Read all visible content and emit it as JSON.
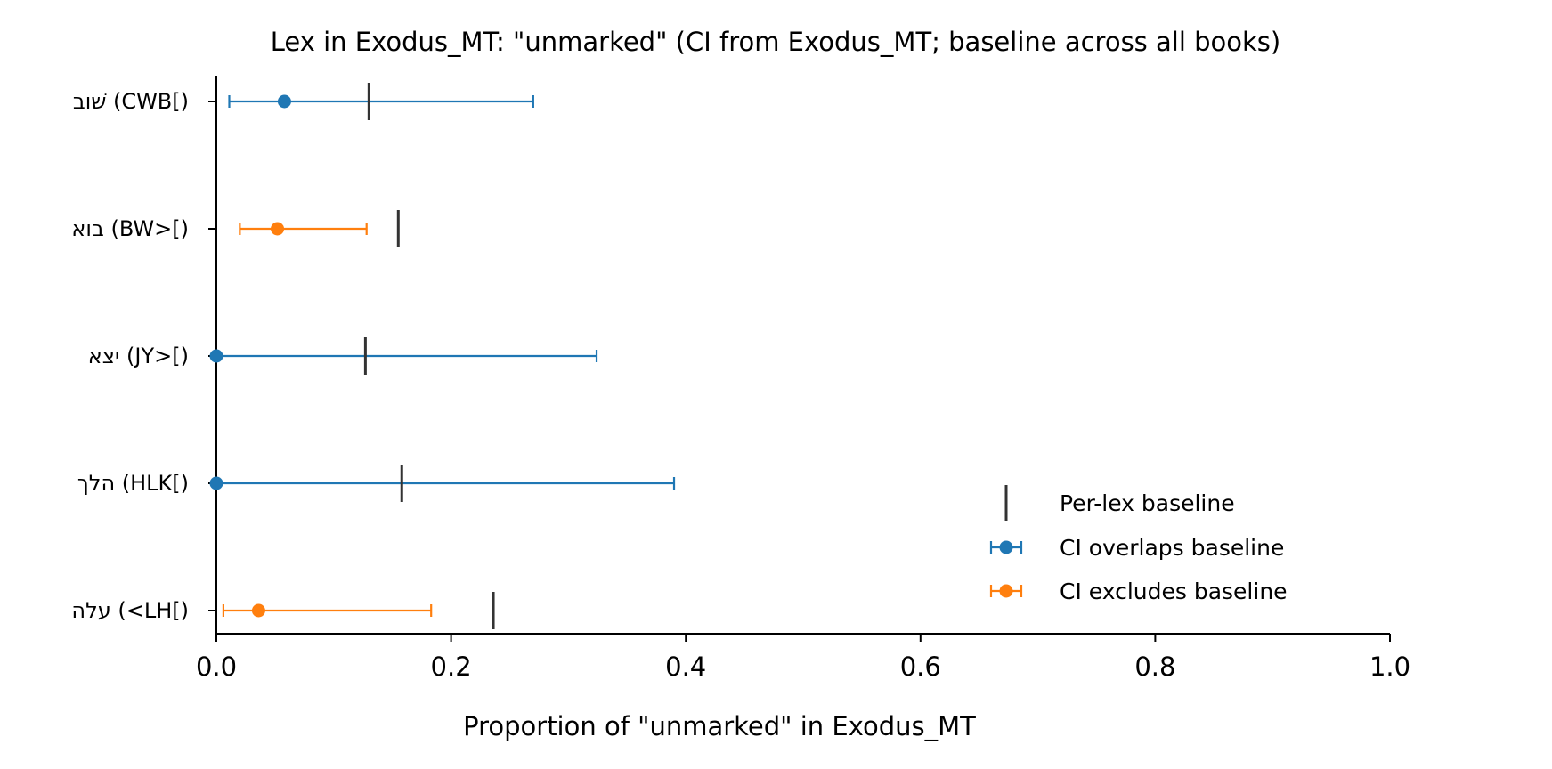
{
  "chart_data": {
    "type": "errorbar",
    "title": "Lex in Exodus_MT: \"unmarked\" (CI from Exodus_MT; baseline across all books)",
    "xlabel": "Proportion of \"unmarked\" in Exodus_MT",
    "ylabel": "",
    "xlim": [
      0.0,
      1.0
    ],
    "x_ticks": [
      "0.0",
      "0.2",
      "0.4",
      "0.6",
      "0.8",
      "1.0"
    ],
    "grid": false,
    "legend_placement": "lower-right",
    "categories": [
      "שׁוב (CWB[)",
      "בוא (BW>[)",
      "יצא (JY>[)",
      "הלך (HLK[)",
      "עלה (<LH[)"
    ],
    "points": [
      {
        "label": "שׁוב (CWB[)",
        "value": 0.058,
        "ci_low": 0.011,
        "ci_high": 0.27,
        "baseline": 0.13,
        "series": "CI overlaps baseline"
      },
      {
        "label": "בוא (BW>[)",
        "value": 0.052,
        "ci_low": 0.02,
        "ci_high": 0.128,
        "baseline": 0.155,
        "series": "CI excludes baseline"
      },
      {
        "label": "יצא (JY>[)",
        "value": 0.0,
        "ci_low": 0.0,
        "ci_high": 0.324,
        "baseline": 0.127,
        "series": "CI overlaps baseline"
      },
      {
        "label": "הלך (HLK[)",
        "value": 0.0,
        "ci_low": 0.0,
        "ci_high": 0.39,
        "baseline": 0.158,
        "series": "CI overlaps baseline"
      },
      {
        "label": "עלה (<LH[)",
        "value": 0.036,
        "ci_low": 0.006,
        "ci_high": 0.183,
        "baseline": 0.236,
        "series": "CI excludes baseline"
      }
    ],
    "legend": [
      {
        "name": "Per-lex baseline",
        "marker": "vline",
        "color": "#333333"
      },
      {
        "name": "CI overlaps baseline",
        "marker": "errorbar-dot",
        "color": "#1f77b4"
      },
      {
        "name": "CI excludes baseline",
        "marker": "errorbar-dot",
        "color": "#ff7f0e"
      }
    ],
    "colors": {
      "overlaps": "#1f77b4",
      "excludes": "#ff7f0e",
      "baseline": "#333333",
      "axis": "#000000"
    }
  }
}
